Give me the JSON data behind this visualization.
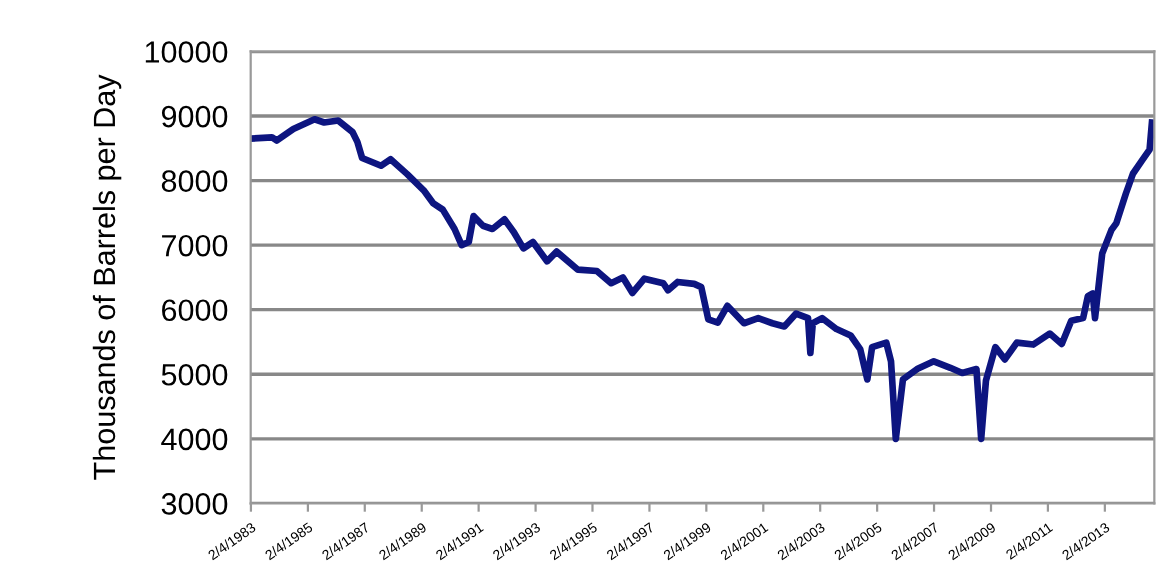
{
  "chart_data": {
    "type": "line",
    "ylabel": "Thousands of Barrels per Day",
    "ylim": [
      3000,
      10000
    ],
    "yticks": [
      3000,
      4000,
      5000,
      6000,
      7000,
      8000,
      9000,
      10000
    ],
    "xlim": [
      "1983-02-01",
      "2014-11-01"
    ],
    "xticks": [
      {
        "value": "1983-02-04",
        "label": "2/4/1983"
      },
      {
        "value": "1985-02-04",
        "label": "2/4/1985"
      },
      {
        "value": "1987-02-04",
        "label": "2/4/1987"
      },
      {
        "value": "1989-02-04",
        "label": "2/4/1989"
      },
      {
        "value": "1991-02-04",
        "label": "2/4/1991"
      },
      {
        "value": "1993-02-04",
        "label": "2/4/1993"
      },
      {
        "value": "1995-02-04",
        "label": "2/4/1995"
      },
      {
        "value": "1997-02-04",
        "label": "2/4/1997"
      },
      {
        "value": "1999-02-04",
        "label": "2/4/1999"
      },
      {
        "value": "2001-02-04",
        "label": "2/4/2001"
      },
      {
        "value": "2003-02-04",
        "label": "2/4/2003"
      },
      {
        "value": "2005-02-04",
        "label": "2/4/2005"
      },
      {
        "value": "2007-02-04",
        "label": "2/4/2007"
      },
      {
        "value": "2009-02-04",
        "label": "2/4/2009"
      },
      {
        "value": "2011-02-04",
        "label": "2/4/2011"
      },
      {
        "value": "2013-02-04",
        "label": "2/4/2013"
      }
    ],
    "grid": "y",
    "marker": "none",
    "line_style": "solid",
    "series": [
      {
        "color": "#0d1580",
        "x": [
          "1983-02",
          "1983-11",
          "1984-01",
          "1984-08",
          "1985-05",
          "1985-09",
          "1986-03",
          "1986-09",
          "1986-11",
          "1987-01",
          "1987-09",
          "1988-01",
          "1988-08",
          "1989-03",
          "1989-07",
          "1989-11",
          "1990-04",
          "1990-07",
          "1990-10",
          "1990-12",
          "1991-04",
          "1991-08",
          "1992-01",
          "1992-05",
          "1992-09",
          "1993-01",
          "1993-07",
          "1993-11",
          "1994-08",
          "1995-04",
          "1995-10",
          "1996-03",
          "1996-07",
          "1996-12",
          "1997-08",
          "1997-10",
          "1998-02",
          "1998-09",
          "1998-12",
          "1999-03",
          "1999-07",
          "1999-11",
          "2000-06",
          "2000-12",
          "2001-06",
          "2001-11",
          "2002-04",
          "2002-09",
          "2002-10",
          "2002-11",
          "2003-03",
          "2003-09",
          "2004-03",
          "2004-07",
          "2004-10",
          "2004-12",
          "2005-06",
          "2005-08",
          "2005-10",
          "2006-01",
          "2006-07",
          "2007-02",
          "2007-09",
          "2008-02",
          "2008-08",
          "2008-10",
          "2008-12",
          "2009-04",
          "2009-08",
          "2010-01",
          "2010-08",
          "2011-03",
          "2011-08",
          "2011-12",
          "2012-05",
          "2012-07",
          "2012-09",
          "2012-10",
          "2013-01",
          "2013-05",
          "2013-07",
          "2013-11",
          "2014-02",
          "2014-06",
          "2014-09",
          "2014-10"
        ],
        "values": [
          8650,
          8670,
          8620,
          8800,
          8950,
          8900,
          8930,
          8750,
          8600,
          8350,
          8230,
          8330,
          8100,
          7850,
          7650,
          7550,
          7250,
          7000,
          7050,
          7450,
          7300,
          7250,
          7400,
          7200,
          6950,
          7050,
          6750,
          6900,
          6620,
          6600,
          6410,
          6500,
          6260,
          6480,
          6410,
          6300,
          6430,
          6400,
          6350,
          5850,
          5800,
          6060,
          5790,
          5870,
          5790,
          5740,
          5940,
          5870,
          5330,
          5790,
          5870,
          5700,
          5600,
          5390,
          4920,
          5420,
          5490,
          5200,
          4000,
          4920,
          5080,
          5200,
          5100,
          5020,
          5080,
          4000,
          4900,
          5420,
          5230,
          5490,
          5460,
          5630,
          5470,
          5830,
          5870,
          6210,
          6250,
          5870,
          6870,
          7240,
          7340,
          7800,
          8110,
          8320,
          8480,
          8900
        ]
      }
    ]
  }
}
